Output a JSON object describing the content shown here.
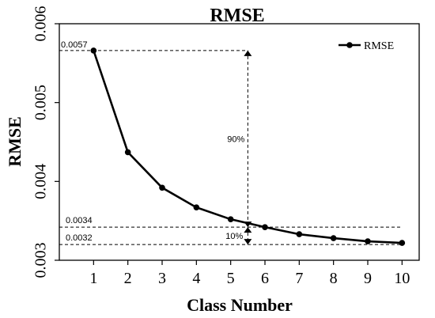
{
  "chart_data": {
    "type": "line",
    "title": "RMSE",
    "xlabel": "Class Number",
    "ylabel": "RMSE",
    "x": [
      1,
      2,
      3,
      4,
      5,
      6,
      7,
      8,
      9,
      10
    ],
    "series": [
      {
        "name": "RMSE",
        "values": [
          0.00566,
          0.00437,
          0.00392,
          0.00367,
          0.00352,
          0.00342,
          0.00333,
          0.00328,
          0.00324,
          0.00322
        ]
      }
    ],
    "xlim": [
      0,
      10.5
    ],
    "ylim": [
      0.003,
      0.006
    ],
    "xticks": [
      "1",
      "2",
      "3",
      "4",
      "5",
      "6",
      "7",
      "8",
      "9",
      "10"
    ],
    "yticks": [
      "0.003",
      "0.004",
      "0.005",
      "0.006"
    ],
    "grid": false,
    "legend_position": "top-right",
    "colors": {
      "series": "#000000",
      "axis": "#000000",
      "background": "#ffffff"
    },
    "annotations": {
      "top_value": {
        "label": "0.0057",
        "y": 0.00566
      },
      "mid_value": {
        "label": "0.0034",
        "y": 0.00342
      },
      "low_value": {
        "label": "0.0032",
        "y": 0.0032
      },
      "span_upper": {
        "label": "90%",
        "x": 5.5
      },
      "span_lower": {
        "label": "10%",
        "x": 5.5
      }
    }
  }
}
